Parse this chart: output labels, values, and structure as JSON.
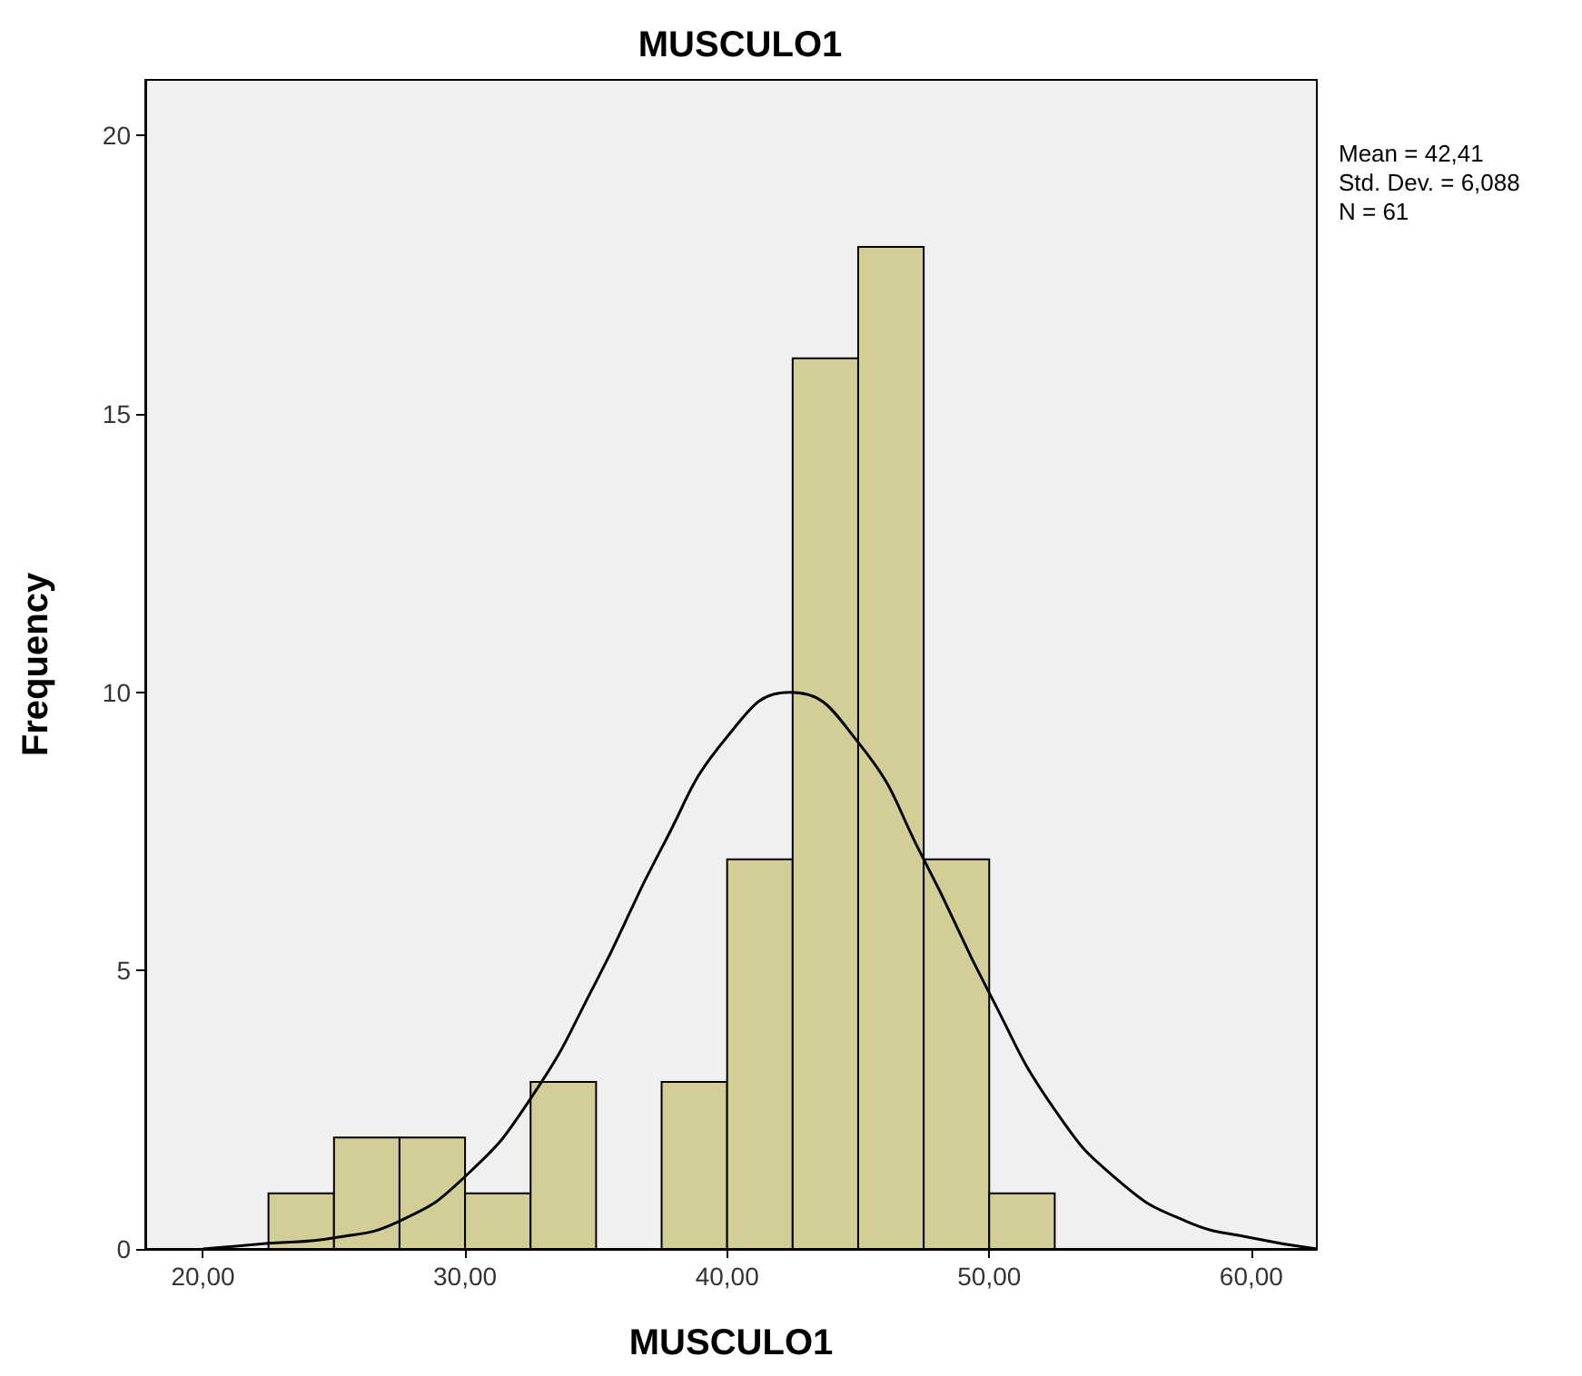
{
  "chart_data": {
    "type": "histogram",
    "title": "MUSCULO1",
    "xlabel": "MUSCULO1",
    "ylabel": "Frequency",
    "annotations": [
      "Mean = 42,41",
      "Std. Dev. = 6,088",
      "N = 61"
    ],
    "bins": [
      22.5,
      25,
      27.5,
      30,
      32.5,
      35,
      37.5,
      40,
      42.5,
      45,
      47.5,
      50,
      52.5
    ],
    "series": [
      {
        "color": "#d3ce97",
        "values": [
          1,
          2,
          2,
          1,
          3,
          0,
          3,
          7,
          16,
          18,
          7,
          1
        ]
      },
      {
        "type": "line",
        "color": "#000000",
        "x": [
          20,
          22.5,
          25,
          27.5,
          30,
          32.5,
          35,
          37.5,
          40,
          42.4,
          45,
          47.5,
          50,
          52.5,
          55,
          57.5,
          60,
          62.5
        ],
        "values": [
          0,
          0.1,
          0.2,
          0.5,
          1.3,
          2.7,
          4.8,
          7.2,
          9.2,
          10,
          9.1,
          7,
          4.6,
          2.5,
          1.2,
          0.5,
          0.2,
          0
        ]
      }
    ],
    "xlim": [
      17.8,
      62.5
    ],
    "ylim": [
      0,
      21
    ],
    "xticks": [
      {
        "value": 20,
        "label": "20,00"
      },
      {
        "value": 30,
        "label": "30,00"
      },
      {
        "value": 40,
        "label": "40,00"
      },
      {
        "value": 50,
        "label": "50,00"
      },
      {
        "value": 60,
        "label": "60,00"
      }
    ],
    "yticks": [
      0,
      5,
      10,
      15,
      20
    ],
    "grid": false,
    "marker": "none",
    "line_style": "solid"
  }
}
